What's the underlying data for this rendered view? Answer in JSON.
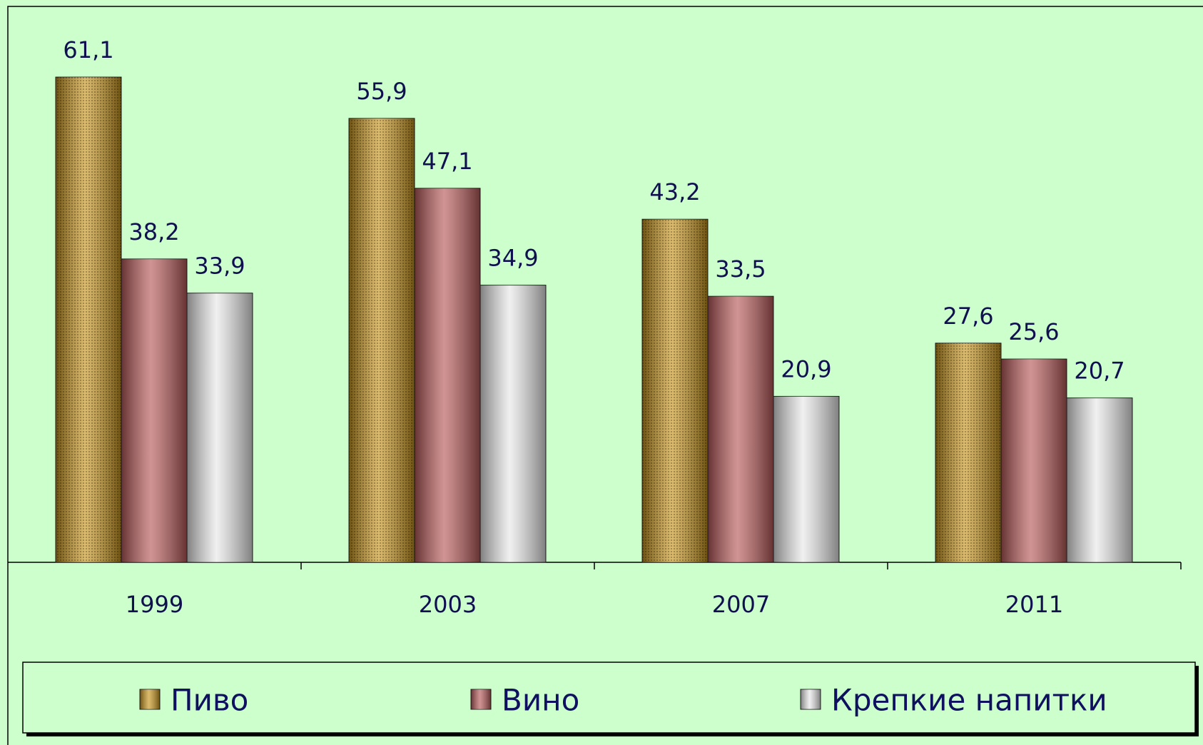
{
  "chart_data": {
    "type": "bar",
    "categories": [
      "1999",
      "2003",
      "2007",
      "2011"
    ],
    "series": [
      {
        "name": "Пиво",
        "color": "#c8961e",
        "values": [
          61.1,
          55.9,
          43.2,
          27.6
        ],
        "value_labels": [
          "61,1",
          "55,9",
          "43,2",
          "27,6"
        ]
      },
      {
        "name": "Вино",
        "color": "#b85a5a",
        "values": [
          38.2,
          47.1,
          33.5,
          25.6
        ],
        "value_labels": [
          "38,2",
          "47,1",
          "33,5",
          "25,6"
        ]
      },
      {
        "name": "Крепкие напитки",
        "color": "#e8e8e8",
        "values": [
          33.9,
          34.9,
          20.9,
          20.7
        ],
        "value_labels": [
          "33,9",
          "34,9",
          "20,9",
          "20,7"
        ]
      }
    ]
  }
}
